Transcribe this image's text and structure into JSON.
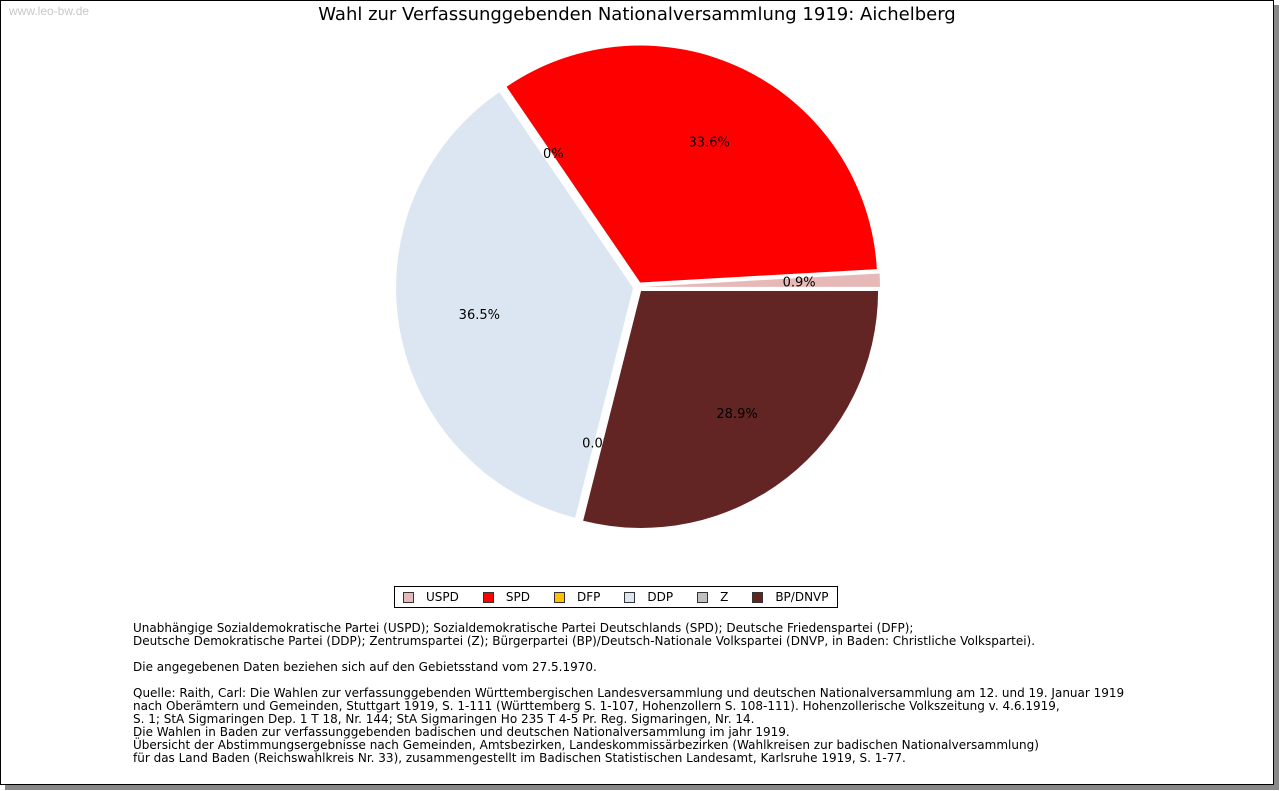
{
  "watermark": "www.leo-bw.de",
  "chart_data": {
    "type": "pie",
    "title": "Wahl zur Verfassunggebenden Nationalversammlung 1919: Aichelberg",
    "slices": [
      {
        "label": "USPD",
        "value": 0.9,
        "text": "0.9%",
        "color": "#e6b9b8"
      },
      {
        "label": "SPD",
        "value": 33.6,
        "text": "33.6%",
        "color": "#ff0000"
      },
      {
        "label": "DFP",
        "value": 0.0,
        "text": "0.0%",
        "color": "#ffc000"
      },
      {
        "label": "DDP",
        "value": 36.5,
        "text": "36.5%",
        "color": "#dce6f2"
      },
      {
        "label": "Z",
        "value": 0.0,
        "text": "0.0%",
        "color": "#c0c0c0"
      },
      {
        "label": "BP/DNVP",
        "value": 28.9,
        "text": "28.9%",
        "color": "#632523"
      }
    ],
    "legend_position": "bottom"
  },
  "notes": {
    "parties_1": "Unabhängige Sozialdemokratische Partei (USPD); Sozialdemokratische Partei Deutschlands (SPD); Deutsche Friedenspartei (DFP);",
    "parties_2": "Deutsche Demokratische Partei (DDP); Zentrumspartei (Z); Bürgerpartei (BP)/Deutsch-Nationale Volkspartei (DNVP, in Baden: Christliche Volkspartei).",
    "gebiet": "Die angegebenen Daten beziehen sich auf den Gebietsstand vom 27.5.1970.",
    "source_1": "Quelle: Raith, Carl: Die Wahlen zur verfassunggebenden Württembergischen Landesversammlung und deutschen Nationalversammlung am 12. und 19. Januar 1919",
    "source_2": "nach Oberämtern und Gemeinden, Stuttgart 1919, S. 1-111 (Württemberg S. 1-107, Hohenzollern S. 108-111). Hohenzollerische Volkszeitung v. 4.6.1919,",
    "source_3": "S. 1; StA Sigmaringen Dep. 1 T 18, Nr. 144; StA Sigmaringen Ho 235 T 4-5 Pr. Reg. Sigmaringen, Nr. 14.",
    "source_4": "Die Wahlen in Baden zur verfassunggebenden badischen und deutschen Nationalversammlung im jahr 1919.",
    "source_5": "Übersicht der Abstimmungsergebnisse nach Gemeinden, Amtsbezirken, Landeskommissärbezirken (Wahlkreisen zur badischen Nationalversammlung)",
    "source_6": "für das Land Baden (Reichswahlkreis Nr. 33), zusammengestellt im Badischen Statistischen Landesamt, Karlsruhe 1919, S. 1-77."
  }
}
